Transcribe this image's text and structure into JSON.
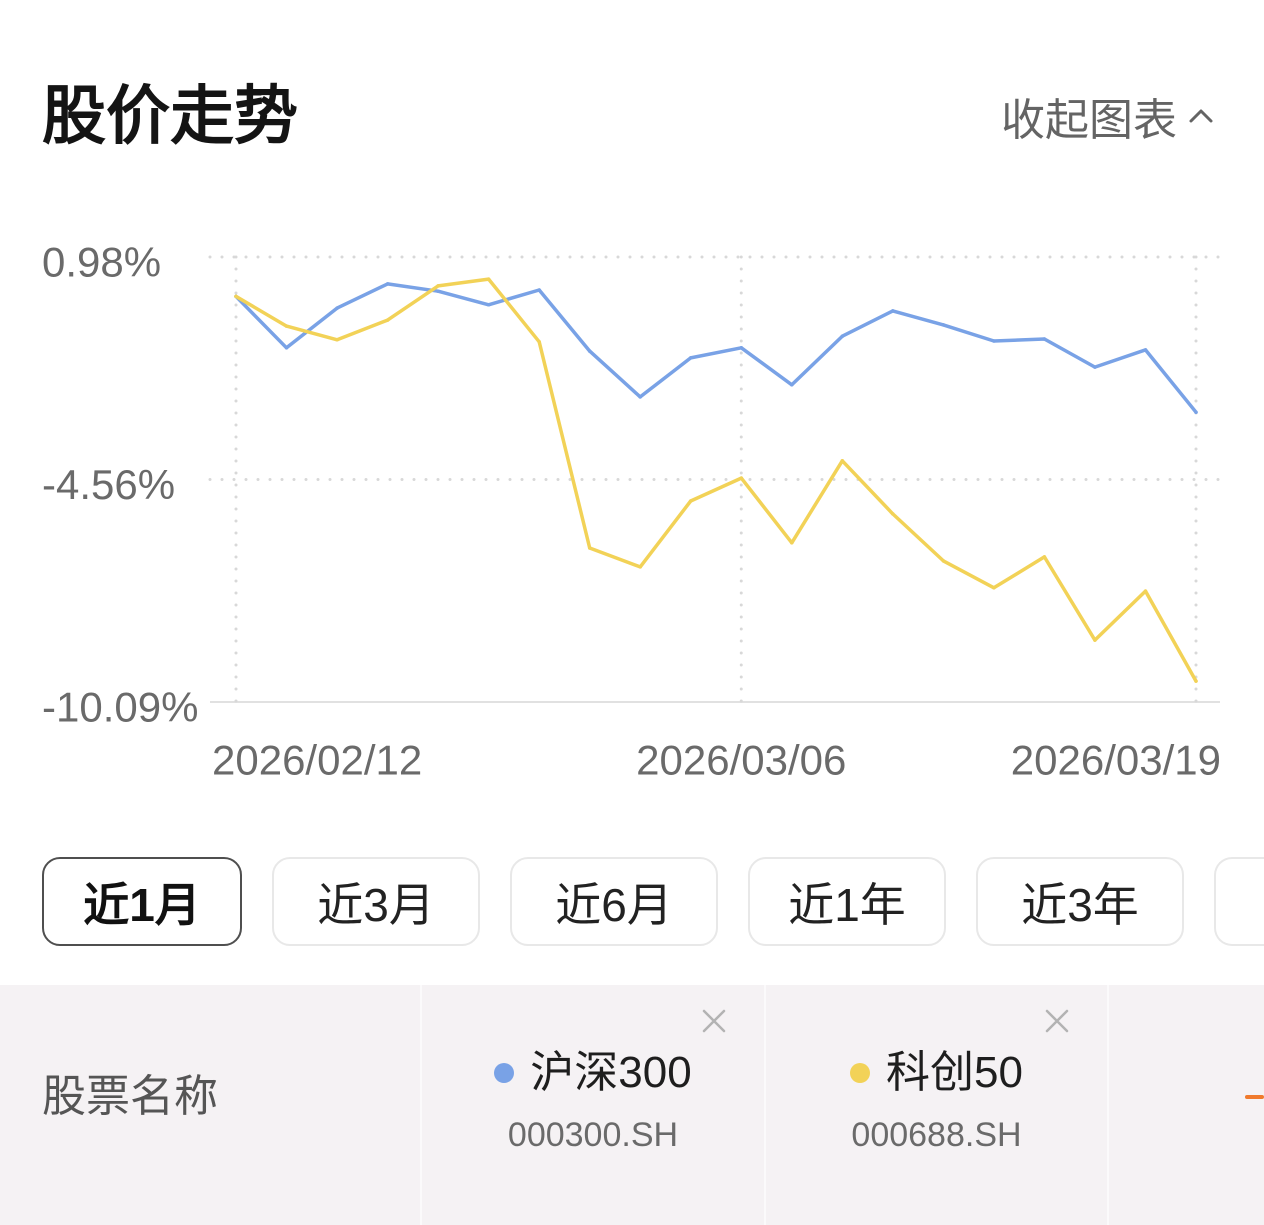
{
  "header": {
    "collapse_label": "收起图表",
    "collapse_icon": "chevron-up-icon"
  },
  "chart_data": {
    "type": "line",
    "title": "股价走势",
    "x": [
      "2026/02/12",
      "",
      "",
      "",
      "",
      "",
      "",
      "",
      "",
      "",
      "2026/03/06",
      "",
      "",
      "",
      "",
      "",
      "",
      "",
      "",
      "2026/03/19"
    ],
    "y_tick_labels": [
      "0.98%",
      "-4.56%",
      "-10.09%"
    ],
    "ylim": [
      -10.09,
      0.98
    ],
    "grid": true,
    "series": [
      {
        "name": "沪深300",
        "code": "000300.SH",
        "color": "#79a2e6",
        "values": [
          0,
          -1.28,
          -0.29,
          0.31,
          0.13,
          -0.21,
          0.16,
          -1.36,
          -2.5,
          -1.53,
          -1.28,
          -2.2,
          -0.99,
          -0.36,
          -0.71,
          -1.11,
          -1.06,
          -1.76,
          -1.33,
          -2.88
        ]
      },
      {
        "name": "科创50",
        "code": "000688.SH",
        "color": "#f2d257",
        "values": [
          0,
          -0.74,
          -1.08,
          -0.59,
          0.26,
          0.43,
          -1.13,
          -6.26,
          -6.73,
          -5.09,
          -4.52,
          -6.13,
          -4.09,
          -5.41,
          -6.58,
          -7.25,
          -6.48,
          -8.55,
          -7.33,
          -9.57
        ]
      }
    ]
  },
  "range_tabs": {
    "selected_index": 0,
    "items": [
      "近1月",
      "近3月",
      "近6月",
      "近1年",
      "近3年"
    ]
  },
  "compare_table": {
    "header_label": "股票名称",
    "remove_icon": "close-icon",
    "add_icon": "plus-icon",
    "add_color": "#f07a2d"
  }
}
